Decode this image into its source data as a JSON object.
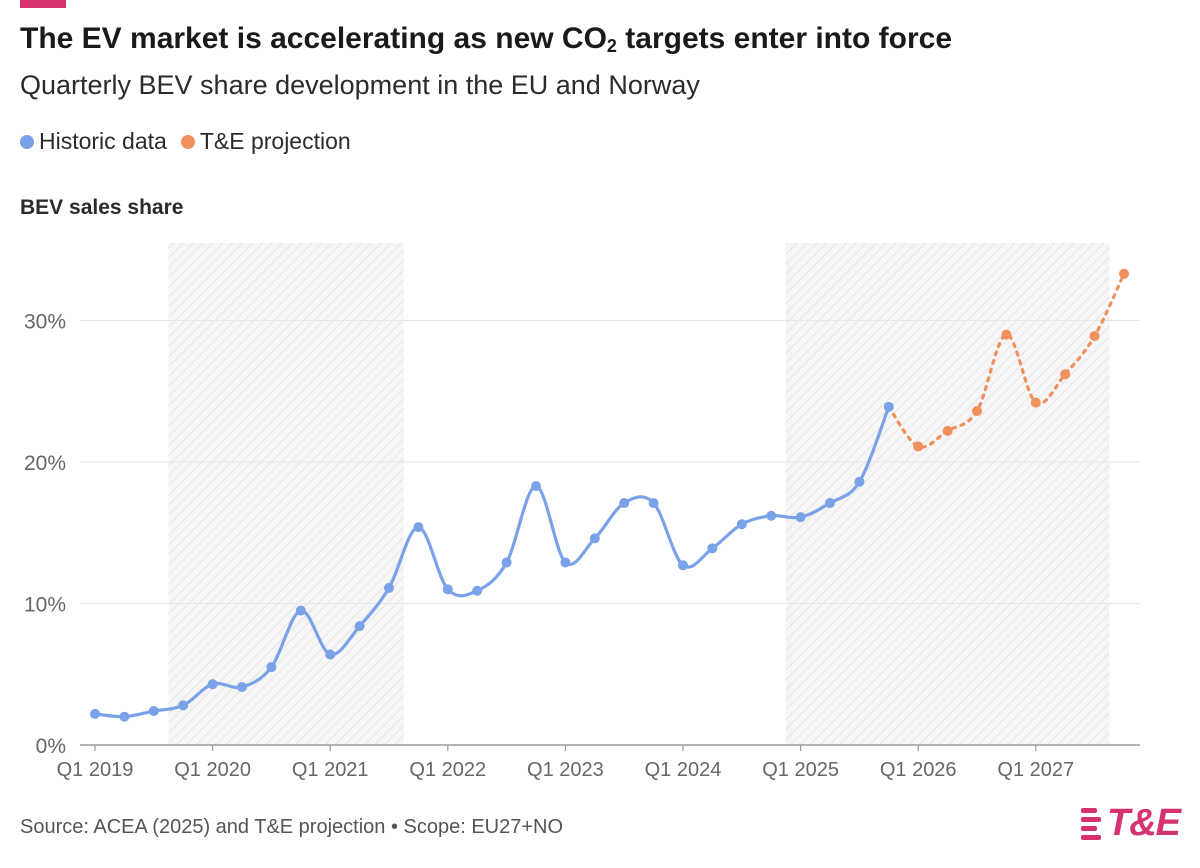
{
  "header": {
    "title_prefix": "The EV market is accelerating as new CO",
    "title_sub": "2",
    "title_suffix": " targets enter into force",
    "subtitle": "Quarterly BEV share development in the EU and Norway"
  },
  "legend": [
    {
      "label": "Historic data",
      "color": "#7aa2e8"
    },
    {
      "label": "T&E projection",
      "color": "#f0905c"
    }
  ],
  "footer": {
    "source": "Source: ACEA (2025) and T&E projection • Scope: EU27+NO",
    "brand": "T&E"
  },
  "chart_data": {
    "type": "line",
    "title": "The EV market is accelerating as new CO2 targets enter into force",
    "subtitle": "Quarterly BEV share development in the EU and Norway",
    "ylabel": "BEV sales share",
    "xlabel": "",
    "ylim": [
      0,
      35
    ],
    "yticks": [
      0,
      10,
      20,
      30
    ],
    "ytick_labels": [
      "0%",
      "10%",
      "20%",
      "30%"
    ],
    "xtick_labels": [
      "Q1 2019",
      "Q1 2020",
      "Q1 2021",
      "Q1 2022",
      "Q1 2023",
      "Q1 2024",
      "Q1 2025",
      "Q1 2026",
      "Q1 2027"
    ],
    "grid": true,
    "legend_position": "top-left",
    "shaded_periods": [
      {
        "from_index": 3,
        "to_index": 11
      },
      {
        "from_index": 24,
        "to_index": 35
      }
    ],
    "series": [
      {
        "name": "Historic data",
        "color": "#7aa2e8",
        "style": "solid",
        "start_index": 0,
        "values": [
          2.2,
          2.0,
          2.4,
          2.8,
          4.3,
          4.1,
          5.5,
          9.5,
          6.4,
          8.4,
          11.1,
          15.4,
          11.0,
          10.9,
          12.9,
          18.3,
          12.9,
          14.6,
          17.1,
          17.1,
          12.7,
          13.9,
          15.6,
          16.2,
          16.1,
          17.1,
          18.6,
          23.9
        ]
      },
      {
        "name": "T&E projection",
        "color": "#f0905c",
        "style": "dotted",
        "start_index": 27,
        "values": [
          23.9,
          21.1,
          22.2,
          23.6,
          29.0,
          24.2,
          26.2,
          28.9,
          33.3
        ]
      }
    ]
  }
}
